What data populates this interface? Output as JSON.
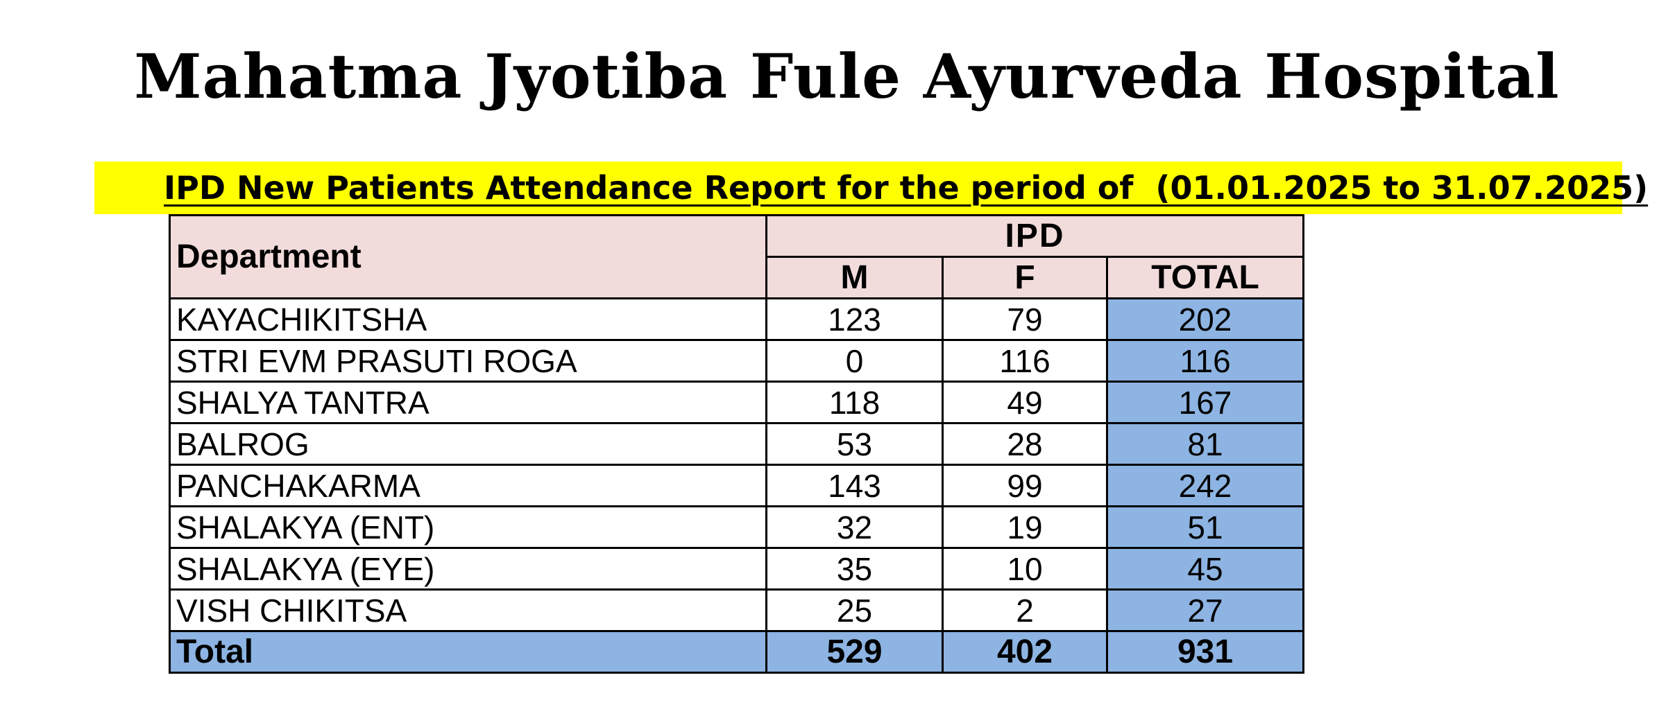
{
  "title": "Mahatma Jyotiba Fule Ayurveda Hospital",
  "subtitle": "IPD New Patients Attendance Report for the period of  (01.01.2025 to 31.07.2025)",
  "banner_color": "#ffff00",
  "header_color": "#f2dcdb",
  "total_color": "#8db4e2",
  "table": {
    "department_header": "Department",
    "group_header": "IPD",
    "columns": [
      "M",
      "F",
      "TOTAL"
    ],
    "rows": [
      {
        "department": "KAYACHIKITSHA",
        "m": "123",
        "f": "79",
        "total": "202"
      },
      {
        "department": "STRI EVM PRASUTI ROGA",
        "m": "0",
        "f": "116",
        "total": "116"
      },
      {
        "department": "SHALYA TANTRA",
        "m": "118",
        "f": "49",
        "total": "167"
      },
      {
        "department": "BALROG",
        "m": "53",
        "f": "28",
        "total": "81"
      },
      {
        "department": "PANCHAKARMA",
        "m": "143",
        "f": "99",
        "total": "242"
      },
      {
        "department": "SHALAKYA (ENT)",
        "m": "32",
        "f": "19",
        "total": "51"
      },
      {
        "department": "SHALAKYA (EYE)",
        "m": "35",
        "f": "10",
        "total": "45"
      },
      {
        "department": "VISH CHIKITSA",
        "m": "25",
        "f": "2",
        "total": "27"
      }
    ],
    "total_row": {
      "label": "Total",
      "m": "529",
      "f": "402",
      "total": "931"
    }
  }
}
